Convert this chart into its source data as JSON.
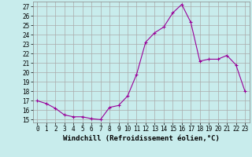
{
  "x": [
    0,
    1,
    2,
    3,
    4,
    5,
    6,
    7,
    8,
    9,
    10,
    11,
    12,
    13,
    14,
    15,
    16,
    17,
    18,
    19,
    20,
    21,
    22,
    23
  ],
  "y": [
    17,
    16.7,
    16.2,
    15.5,
    15.3,
    15.3,
    15.1,
    15.0,
    16.3,
    16.5,
    17.5,
    19.8,
    23.2,
    24.2,
    24.8,
    26.3,
    27.2,
    25.3,
    21.2,
    21.4,
    21.4,
    21.8,
    20.8,
    18.0
  ],
  "line_color": "#990099",
  "marker": "+",
  "marker_size": 3,
  "marker_linewidth": 0.8,
  "bg_color": "#c8ecec",
  "grid_color": "#aaaaaa",
  "xlabel": "Windchill (Refroidissement éolien,°C)",
  "ylabel": "",
  "xlim": [
    -0.5,
    23.5
  ],
  "ylim": [
    14.7,
    27.5
  ],
  "yticks": [
    15,
    16,
    17,
    18,
    19,
    20,
    21,
    22,
    23,
    24,
    25,
    26,
    27
  ],
  "xticks": [
    0,
    1,
    2,
    3,
    4,
    5,
    6,
    7,
    8,
    9,
    10,
    11,
    12,
    13,
    14,
    15,
    16,
    17,
    18,
    19,
    20,
    21,
    22,
    23
  ],
  "tick_fontsize": 5.5,
  "xlabel_fontsize": 6.5,
  "line_width": 0.8
}
